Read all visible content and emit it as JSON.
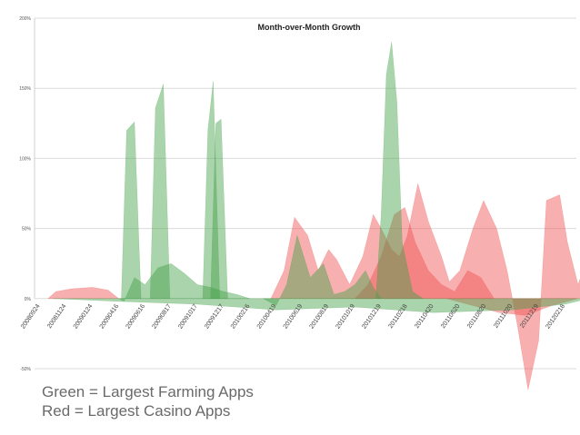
{
  "chart_data": {
    "type": "area",
    "title": "Month-over-Month Growth",
    "xlabel": "",
    "ylabel": "",
    "y_tick_labels": [
      "200%",
      "150%",
      "100%",
      "50%",
      "0%",
      "-50%"
    ],
    "y_ticks": [
      200,
      150,
      100,
      50,
      0,
      -50
    ],
    "ylim": [
      -50,
      200
    ],
    "grid": "horizontal",
    "x_tick_labels": [
      "20080924",
      "20081124",
      "20090124",
      "20090416",
      "20090616",
      "20090817",
      "20091017",
      "20091217",
      "20100216",
      "20100419",
      "20100619",
      "20100819",
      "20101019",
      "20101219",
      "20110218",
      "20110420",
      "20110620",
      "20110820",
      "20111020",
      "20111219",
      "20120218"
    ],
    "series": [
      {
        "name": "Largest Farming Apps",
        "color": "#43a047",
        "layers": [
          [
            [
              3.1,
              0
            ],
            [
              3.3,
              120
            ],
            [
              3.6,
              126
            ],
            [
              3.85,
              0
            ]
          ],
          [
            [
              4.2,
              0
            ],
            [
              4.4,
              136
            ],
            [
              4.7,
              153
            ],
            [
              4.95,
              0
            ]
          ],
          [
            [
              6.2,
              0
            ],
            [
              6.4,
              120
            ],
            [
              6.6,
              155
            ],
            [
              6.85,
              0
            ]
          ],
          [
            [
              6.5,
              0
            ],
            [
              6.7,
              125
            ],
            [
              6.9,
              128
            ],
            [
              7.15,
              0
            ]
          ],
          [
            [
              3.0,
              0
            ],
            [
              3.2,
              -2
            ],
            [
              3.6,
              15
            ],
            [
              4.0,
              10
            ],
            [
              4.5,
              22
            ],
            [
              5.0,
              25
            ],
            [
              5.5,
              18
            ],
            [
              6.0,
              10
            ],
            [
              6.5,
              8
            ],
            [
              7.0,
              5
            ],
            [
              7.5,
              3
            ],
            [
              8.0,
              0
            ]
          ],
          [
            [
              8.5,
              0
            ],
            [
              9.0,
              -5
            ],
            [
              9.4,
              10
            ],
            [
              9.8,
              45
            ],
            [
              10.3,
              15
            ],
            [
              10.8,
              25
            ],
            [
              11.2,
              3
            ],
            [
              11.6,
              5
            ],
            [
              12.0,
              10
            ],
            [
              12.4,
              20
            ],
            [
              12.7,
              8
            ],
            [
              13.0,
              0
            ]
          ],
          [
            [
              12.8,
              0
            ],
            [
              13.0,
              60
            ],
            [
              13.2,
              160
            ],
            [
              13.4,
              183
            ],
            [
              13.6,
              140
            ],
            [
              13.8,
              40
            ],
            [
              14.2,
              5
            ],
            [
              14.6,
              0
            ]
          ],
          [
            [
              0.5,
              0
            ],
            [
              3.0,
              -2
            ],
            [
              6.0,
              -4
            ],
            [
              9.0,
              -8
            ],
            [
              12.0,
              -6
            ],
            [
              15.0,
              -10
            ],
            [
              18.0,
              -8
            ],
            [
              20.0,
              -4
            ],
            [
              20.9,
              0
            ]
          ]
        ]
      },
      {
        "name": "Largest Casino Apps",
        "color": "#f04e4e",
        "layers": [
          [
            [
              0.3,
              0
            ],
            [
              0.6,
              5
            ],
            [
              1.2,
              7
            ],
            [
              2.0,
              8
            ],
            [
              2.6,
              6
            ],
            [
              3.0,
              0
            ]
          ],
          [
            [
              8.8,
              0
            ],
            [
              9.3,
              20
            ],
            [
              9.7,
              58
            ],
            [
              10.2,
              45
            ],
            [
              10.6,
              20
            ],
            [
              11.0,
              35
            ],
            [
              11.3,
              28
            ],
            [
              11.8,
              10
            ],
            [
              12.3,
              30
            ],
            [
              12.7,
              60
            ],
            [
              13.0,
              50
            ],
            [
              13.4,
              35
            ],
            [
              13.7,
              30
            ],
            [
              14.0,
              45
            ],
            [
              14.4,
              82
            ],
            [
              14.8,
              55
            ],
            [
              15.3,
              30
            ],
            [
              15.6,
              12
            ],
            [
              16.0,
              20
            ],
            [
              16.5,
              50
            ],
            [
              16.9,
              70
            ],
            [
              17.4,
              50
            ],
            [
              17.8,
              20
            ],
            [
              18.2,
              -20
            ],
            [
              18.6,
              -65
            ],
            [
              19.0,
              -30
            ],
            [
              19.3,
              70
            ],
            [
              19.8,
              74
            ],
            [
              20.1,
              40
            ],
            [
              20.5,
              10
            ],
            [
              20.8,
              25
            ],
            [
              21.0,
              35
            ],
            [
              21.2,
              0
            ]
          ],
          [
            [
              12.0,
              0
            ],
            [
              12.5,
              10
            ],
            [
              13.0,
              30
            ],
            [
              13.5,
              60
            ],
            [
              13.9,
              65
            ],
            [
              14.3,
              40
            ],
            [
              14.8,
              20
            ],
            [
              15.3,
              10
            ],
            [
              15.8,
              5
            ],
            [
              16.3,
              20
            ],
            [
              16.8,
              15
            ],
            [
              17.3,
              0
            ]
          ],
          [
            [
              15.5,
              0
            ],
            [
              16.5,
              -5
            ],
            [
              17.5,
              -10
            ],
            [
              18.5,
              -12
            ],
            [
              19.5,
              -5
            ],
            [
              20.5,
              0
            ]
          ]
        ]
      }
    ],
    "legend_notes": [
      "Green = Largest Farming Apps",
      "Red = Largest Casino Apps"
    ]
  }
}
